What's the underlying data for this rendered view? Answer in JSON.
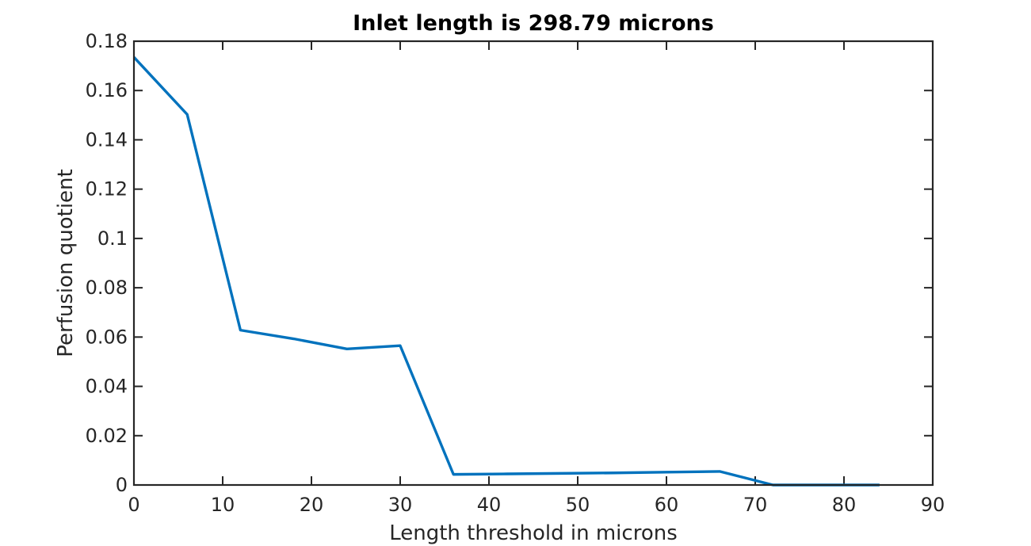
{
  "chart_data": {
    "type": "line",
    "title": "Inlet length is 298.79 microns",
    "xlabel": "Length threshold in microns",
    "ylabel": "Perfusion quotient",
    "xlim": [
      0,
      90
    ],
    "ylim": [
      0,
      0.18
    ],
    "xticks": [
      0,
      10,
      20,
      30,
      40,
      50,
      60,
      70,
      80,
      90
    ],
    "yticks": [
      0,
      0.02,
      0.04,
      0.06,
      0.08,
      0.1,
      0.12,
      0.14,
      0.16,
      0.18
    ],
    "xtick_labels": [
      "0",
      "10",
      "20",
      "30",
      "40",
      "50",
      "60",
      "70",
      "80",
      "90"
    ],
    "ytick_labels": [
      "0",
      "0.02",
      "0.04",
      "0.06",
      "0.08",
      "0.1",
      "0.12",
      "0.14",
      "0.16",
      "0.18"
    ],
    "grid": false,
    "series": [
      {
        "color": "#0072bd",
        "x": [
          0,
          6,
          12,
          18,
          24,
          30,
          36,
          42,
          48,
          54,
          60,
          66,
          72,
          78,
          84
        ],
        "y": [
          0.1735,
          0.1503,
          0.0628,
          0.0593,
          0.0552,
          0.0565,
          0.0043,
          0.0045,
          0.0047,
          0.0049,
          0.0052,
          0.0055,
          0.0,
          0.0,
          0.0
        ]
      }
    ]
  }
}
